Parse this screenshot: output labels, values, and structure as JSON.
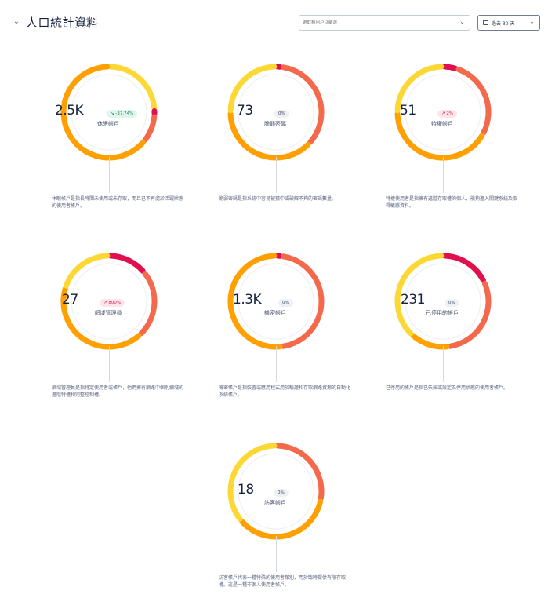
{
  "header": {
    "title": "人口統計資料",
    "info_icon": "info-icon",
    "filter_placeholder": "選取租用戶以篩選",
    "date_range": "過去 30 天"
  },
  "colors": {
    "yellow": "#fdd835",
    "amber": "#ffa000",
    "orange": "#ff9800",
    "coral": "#f4694b",
    "crimson": "#e0104f",
    "track": "#eef0f4"
  },
  "cards": [
    {
      "value": "2.5K",
      "change": "-37.74%",
      "trend": "down",
      "label": "休眠帳戶",
      "description": "休眠帳戶是指長時間未使用或未存取，而且已不再處於活躍狀態的使用者帳戶。",
      "segments": [
        [
          "yellow",
          0.24
        ],
        [
          "crimson",
          0.02
        ],
        [
          "coral",
          0.1
        ],
        [
          "amber",
          0.64
        ]
      ]
    },
    {
      "value": "73",
      "change": "0%",
      "trend": "flat",
      "label": "脆弱密碼",
      "description": "脆弱密碼是指系統中容易被猜中或破解不夠的密碼數量。",
      "segments": [
        [
          "crimson",
          0.02
        ],
        [
          "coral",
          0.35
        ],
        [
          "amber",
          0.38
        ],
        [
          "yellow",
          0.25
        ]
      ]
    },
    {
      "value": "51",
      "change": "2%",
      "trend": "up",
      "label": "特權帳戶",
      "description": "特權使用者是指擁有進階存取權的個人，能夠進入關鍵系統及取得敏感資料。",
      "segments": [
        [
          "crimson",
          0.05
        ],
        [
          "coral",
          0.28
        ],
        [
          "amber",
          0.42
        ],
        [
          "yellow",
          0.25
        ]
      ]
    },
    {
      "value": "27",
      "change": "800%",
      "trend": "up",
      "label": "網域管理員",
      "description": "網域管理員是指特定使用者或帳戶，他們擁有網路中個別網域的進階特權和完整控制權。",
      "segments": [
        [
          "crimson",
          0.14
        ],
        [
          "coral",
          0.24
        ],
        [
          "amber",
          0.42
        ],
        [
          "yellow",
          0.2
        ]
      ]
    },
    {
      "value": "1.3K",
      "change": "0%",
      "trend": "flat",
      "label": "機密帳戶",
      "description": "機密帳戶是指裝置或應用程式用於驗證和存取網路資源的自動化系統帳戶。",
      "segments": [
        [
          "crimson",
          0.02
        ],
        [
          "coral",
          0.46
        ],
        [
          "amber",
          0.52
        ]
      ]
    },
    {
      "value": "231",
      "change": "0%",
      "trend": "flat",
      "label": "已停用的帳戶",
      "description": "已停用的帳戶是指已失效或設定為停用狀態的使用者帳戶。",
      "segments": [
        [
          "crimson",
          0.18
        ],
        [
          "coral",
          0.3
        ],
        [
          "amber",
          0.14
        ],
        [
          "yellow",
          0.38
        ]
      ]
    },
    {
      "value": "18",
      "change": "0%",
      "trend": "flat",
      "label": "訪客帳戶",
      "description": "訪客帳戶代表一種特殊的使用者類別，用於臨時提供有限存取權。這是一種非個人使用者帳戶。",
      "segments": [
        [
          "coral",
          0.28
        ],
        [
          "amber",
          0.36
        ],
        [
          "yellow",
          0.36
        ]
      ]
    }
  ]
}
